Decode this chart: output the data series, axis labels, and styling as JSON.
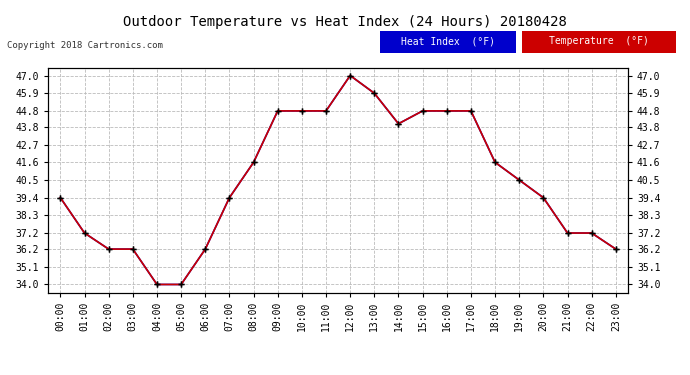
{
  "title": "Outdoor Temperature vs Heat Index (24 Hours) 20180428",
  "copyright": "Copyright 2018 Cartronics.com",
  "hours": [
    "00:00",
    "01:00",
    "02:00",
    "03:00",
    "04:00",
    "05:00",
    "06:00",
    "07:00",
    "08:00",
    "09:00",
    "10:00",
    "11:00",
    "12:00",
    "13:00",
    "14:00",
    "15:00",
    "16:00",
    "17:00",
    "18:00",
    "19:00",
    "20:00",
    "21:00",
    "22:00",
    "23:00"
  ],
  "temperature": [
    39.4,
    37.2,
    36.2,
    36.2,
    34.0,
    34.0,
    36.2,
    39.4,
    41.6,
    44.8,
    44.8,
    44.8,
    47.0,
    45.9,
    44.0,
    44.8,
    44.8,
    44.8,
    41.6,
    40.5,
    39.4,
    37.2,
    37.2,
    36.2
  ],
  "heat_index": [
    39.4,
    37.2,
    36.2,
    36.2,
    34.0,
    34.0,
    36.2,
    39.4,
    41.6,
    44.8,
    44.8,
    44.8,
    47.0,
    45.9,
    44.0,
    44.8,
    44.8,
    44.8,
    41.6,
    40.5,
    39.4,
    37.2,
    37.2,
    36.2
  ],
  "yticks": [
    34.0,
    35.1,
    36.2,
    37.2,
    38.3,
    39.4,
    40.5,
    41.6,
    42.7,
    43.8,
    44.8,
    45.9,
    47.0
  ],
  "ylim": [
    33.5,
    47.5
  ],
  "temp_color": "#cc0000",
  "heat_index_color": "#0000cc",
  "legend_heat_bg": "#0000cc",
  "legend_temp_bg": "#cc0000",
  "legend_text_color": "#ffffff",
  "background_color": "#ffffff",
  "grid_color": "#bbbbbb",
  "marker": "+",
  "marker_color": "#000000",
  "line_width": 1.2,
  "marker_size": 5,
  "title_fontsize": 10,
  "tick_fontsize": 7,
  "copyright_fontsize": 6.5
}
